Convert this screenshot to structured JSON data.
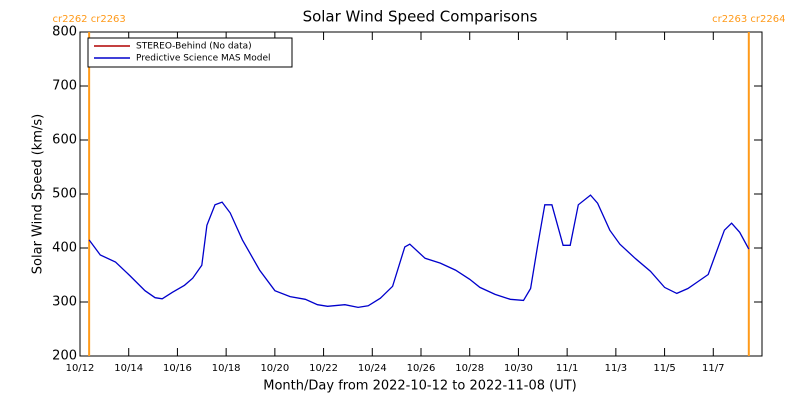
{
  "chart_data": {
    "type": "line",
    "title": "Solar Wind Speed Comparisons",
    "x_label": "Month/Day from 2022-10-12 to 2022-11-08 (UT)",
    "y_label": "Solar Wind Speed (km/s)",
    "xlim": [
      "2022-10-12T00:00",
      "2022-11-09T00:00"
    ],
    "xticks": [
      {
        "value": "2022-10-12T00:00",
        "label": "10/12"
      },
      {
        "value": "2022-10-14T00:00",
        "label": "10/14"
      },
      {
        "value": "2022-10-16T00:00",
        "label": "10/16"
      },
      {
        "value": "2022-10-18T00:00",
        "label": "10/18"
      },
      {
        "value": "2022-10-20T00:00",
        "label": "10/20"
      },
      {
        "value": "2022-10-22T00:00",
        "label": "10/22"
      },
      {
        "value": "2022-10-24T00:00",
        "label": "10/24"
      },
      {
        "value": "2022-10-26T00:00",
        "label": "10/26"
      },
      {
        "value": "2022-10-28T00:00",
        "label": "10/28"
      },
      {
        "value": "2022-10-30T00:00",
        "label": "10/30"
      },
      {
        "value": "2022-11-01T00:00",
        "label": "11/1"
      },
      {
        "value": "2022-11-03T00:00",
        "label": "11/3"
      },
      {
        "value": "2022-11-05T00:00",
        "label": "11/5"
      },
      {
        "value": "2022-11-07T00:00",
        "label": "11/7"
      }
    ],
    "ylim": [
      200,
      800
    ],
    "yticks": [
      200,
      300,
      400,
      500,
      600,
      700,
      800
    ],
    "grid": false,
    "legend": "top-left",
    "markers": [
      {
        "x": "2022-10-12T09:00",
        "label": "cr2262 cr2263",
        "color": "#ff9a1a"
      },
      {
        "x": "2022-11-08T11:00",
        "label": "cr2263 cr2264",
        "color": "#ff9a1a"
      }
    ],
    "x": [
      "2022-10-12T09:00",
      "2022-10-12T20:00",
      "2022-10-13T11:00",
      "2022-10-14T01:00",
      "2022-10-14T16:00",
      "2022-10-15T02:00",
      "2022-10-15T09:00",
      "2022-10-15T19:00",
      "2022-10-16T07:00",
      "2022-10-16T15:00",
      "2022-10-17T00:00",
      "2022-10-17T05:00",
      "2022-10-17T13:00",
      "2022-10-17T20:00",
      "2022-10-18T04:00",
      "2022-10-18T16:00",
      "2022-10-19T09:00",
      "2022-10-20T00:00",
      "2022-10-20T15:00",
      "2022-10-21T06:00",
      "2022-10-21T18:00",
      "2022-10-22T04:00",
      "2022-10-22T21:00",
      "2022-10-23T10:00",
      "2022-10-23T20:00",
      "2022-10-24T08:00",
      "2022-10-24T20:00",
      "2022-10-25T08:00",
      "2022-10-25T13:00",
      "2022-10-26T04:00",
      "2022-10-26T19:00",
      "2022-10-27T10:00",
      "2022-10-28T00:00",
      "2022-10-28T10:00",
      "2022-10-29T01:00",
      "2022-10-29T16:00",
      "2022-10-30T05:00",
      "2022-10-30T12:00",
      "2022-10-30T19:00",
      "2022-10-31T02:00",
      "2022-10-31T09:00",
      "2022-10-31T20:00",
      "2022-11-01T03:00",
      "2022-11-01T11:00",
      "2022-11-01T23:00",
      "2022-11-02T06:00",
      "2022-11-02T18:00",
      "2022-11-03T04:00",
      "2022-11-03T19:00",
      "2022-11-04T10:00",
      "2022-11-05T00:00",
      "2022-11-05T12:00",
      "2022-11-05T23:00",
      "2022-11-06T09:00",
      "2022-11-06T19:00",
      "2022-11-07T02:00",
      "2022-11-07T11:00",
      "2022-11-07T18:00",
      "2022-11-08T02:00",
      "2022-11-08T11:00"
    ],
    "series": [
      {
        "name": "STEREO-Behind (No data)",
        "color": "#b00000",
        "values": [
          null,
          null,
          null,
          null,
          null,
          null,
          null,
          null,
          null,
          null,
          null,
          null,
          null,
          null,
          null,
          null,
          null,
          null,
          null,
          null,
          null,
          null,
          null,
          null,
          null,
          null,
          null,
          null,
          null,
          null,
          null,
          null,
          null,
          null,
          null,
          null,
          null,
          null,
          null,
          null,
          null,
          null,
          null,
          null,
          null,
          null,
          null,
          null,
          null,
          null,
          null,
          null,
          null,
          null,
          null,
          null,
          null,
          null,
          null,
          null
        ]
      },
      {
        "name": "Predictive Science MAS Model",
        "color": "#0000cc",
        "values": [
          415,
          387,
          374,
          349,
          321,
          308,
          306,
          318,
          331,
          344,
          368,
          442,
          480,
          485,
          465,
          415,
          359,
          321,
          310,
          305,
          295,
          292,
          295,
          290,
          293,
          307,
          329,
          402,
          407,
          381,
          372,
          359,
          342,
          327,
          314,
          305,
          303,
          325,
          405,
          480,
          480,
          405,
          405,
          480,
          498,
          483,
          433,
          407,
          381,
          357,
          327,
          316,
          325,
          338,
          351,
          387,
          433,
          446,
          429,
          398
        ]
      }
    ]
  }
}
